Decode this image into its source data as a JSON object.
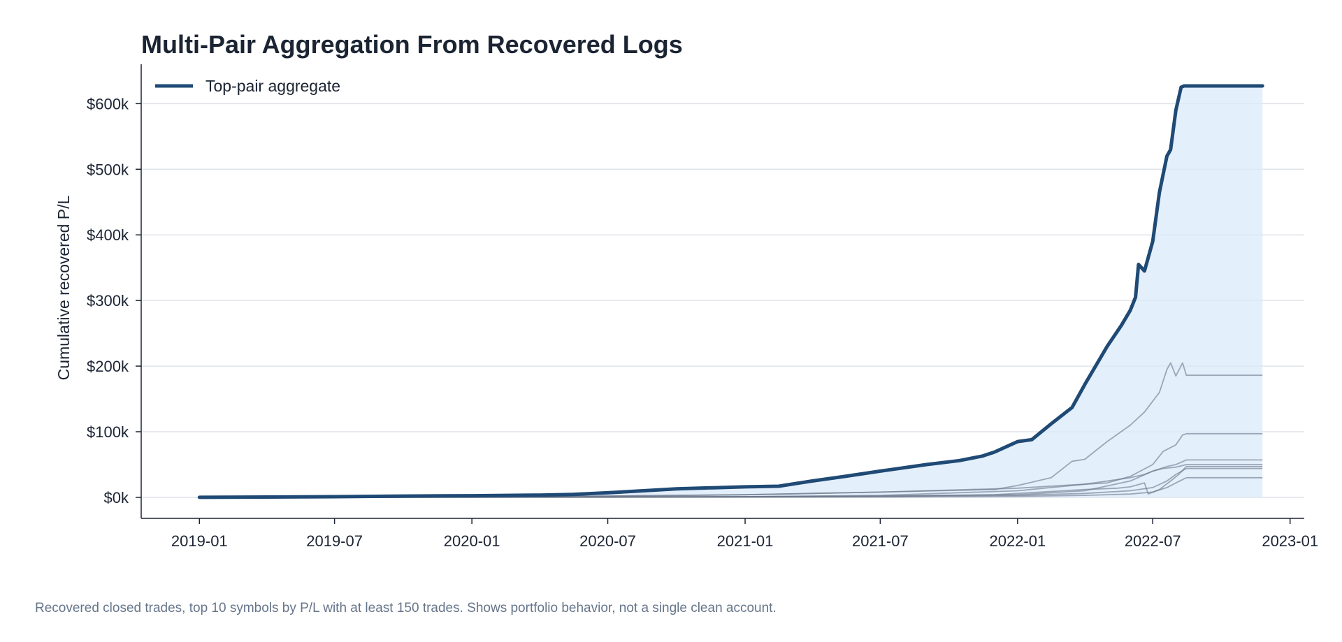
{
  "caption": "Recovered closed trades, top 10 symbols by P/L with at least 150 trades. Shows portfolio behavior, not a single clean account.",
  "chart_data": {
    "type": "line",
    "title": "Multi-Pair Aggregation From Recovered Logs",
    "xlabel": "",
    "ylabel": "Cumulative recovered P/L",
    "x_ticks": [
      "2019-01",
      "2019-07",
      "2020-01",
      "2020-07",
      "2021-01",
      "2021-07",
      "2022-01",
      "2022-07",
      "2023-01"
    ],
    "y_ticks": [
      "$0k",
      "$100k",
      "$200k",
      "$300k",
      "$400k",
      "$500k",
      "$600k"
    ],
    "xlim": [
      "2018-10-15",
      "2023-01-20"
    ],
    "ylim": [
      -32,
      660
    ],
    "grid": "horizontal",
    "legend_position": "top-left",
    "colors": {
      "aggregate": "#1f4a75",
      "fill": "#dbe9fb",
      "components": "#6b7788",
      "grid": "#dfe3e8"
    },
    "series": [
      {
        "name": "Top-pair aggregate",
        "role": "aggregate",
        "dates": [
          "2019-01-01",
          "2019-04-01",
          "2019-07-01",
          "2019-10-01",
          "2020-01-01",
          "2020-04-01",
          "2020-05-15",
          "2020-07-01",
          "2020-09-01",
          "2020-10-01",
          "2021-01-01",
          "2021-02-15",
          "2021-04-01",
          "2021-05-15",
          "2021-07-01",
          "2021-09-01",
          "2021-10-15",
          "2021-11-15",
          "2021-12-01",
          "2022-01-01",
          "2022-01-20",
          "2022-02-15",
          "2022-03-15",
          "2022-04-01",
          "2022-05-01",
          "2022-05-20",
          "2022-06-01",
          "2022-06-08",
          "2022-06-12",
          "2022-06-20",
          "2022-07-01",
          "2022-07-10",
          "2022-07-20",
          "2022-07-25",
          "2022-08-01",
          "2022-08-08",
          "2022-08-12",
          "2022-08-15",
          "2022-11-25"
        ],
        "values": [
          0,
          0.5,
          1,
          2,
          2.5,
          3.5,
          4.5,
          7,
          11,
          13,
          16,
          17,
          25,
          32,
          40,
          50,
          56,
          63,
          69,
          85,
          88,
          112,
          137,
          172,
          230,
          262,
          285,
          305,
          355,
          345,
          390,
          465,
          520,
          530,
          590,
          625,
          627,
          627,
          627
        ]
      },
      {
        "name": "",
        "role": "component",
        "dates": [
          "2019-01-01",
          "2020-01-01",
          "2020-07-01",
          "2021-01-01",
          "2021-07-01",
          "2021-12-01",
          "2022-01-01",
          "2022-02-15",
          "2022-03-15",
          "2022-04-01",
          "2022-05-01",
          "2022-06-01",
          "2022-06-20",
          "2022-07-10",
          "2022-07-20",
          "2022-07-25",
          "2022-08-01",
          "2022-08-10",
          "2022-08-15",
          "2022-11-25"
        ],
        "values": [
          0,
          0.5,
          2,
          4,
          8,
          12,
          18,
          30,
          55,
          58,
          85,
          110,
          130,
          160,
          195,
          205,
          185,
          205,
          186,
          186
        ]
      },
      {
        "name": "",
        "role": "component",
        "dates": [
          "2019-01-01",
          "2020-01-01",
          "2020-07-01",
          "2021-01-01",
          "2021-07-01",
          "2022-01-01",
          "2022-03-01",
          "2022-05-01",
          "2022-06-01",
          "2022-07-01",
          "2022-07-15",
          "2022-08-01",
          "2022-08-10",
          "2022-08-15",
          "2022-11-25"
        ],
        "values": [
          0,
          0.5,
          2,
          4,
          8,
          14,
          18,
          22,
          32,
          50,
          70,
          80,
          95,
          97,
          97
        ]
      },
      {
        "name": "",
        "role": "component",
        "dates": [
          "2019-01-01",
          "2020-01-01",
          "2021-01-01",
          "2021-07-01",
          "2022-01-01",
          "2022-04-01",
          "2022-06-01",
          "2022-07-01",
          "2022-07-20",
          "2022-08-01",
          "2022-08-15",
          "2022-11-25"
        ],
        "values": [
          0,
          0.5,
          1,
          2,
          4,
          10,
          25,
          40,
          47,
          50,
          57,
          57
        ]
      },
      {
        "name": "",
        "role": "component",
        "dates": [
          "2019-01-01",
          "2020-01-01",
          "2021-01-01",
          "2021-07-01",
          "2022-01-01",
          "2022-04-01",
          "2022-06-01",
          "2022-06-20",
          "2022-07-01",
          "2022-07-15",
          "2022-08-01",
          "2022-08-15",
          "2022-11-25"
        ],
        "values": [
          0,
          0.3,
          1,
          3,
          10,
          20,
          30,
          35,
          40,
          44,
          46,
          50,
          50
        ]
      },
      {
        "name": "",
        "role": "component",
        "dates": [
          "2019-01-01",
          "2020-01-01",
          "2021-01-01",
          "2021-07-01",
          "2021-12-01",
          "2022-02-01",
          "2022-04-01",
          "2022-05-15",
          "2022-06-01",
          "2022-06-20",
          "2022-06-25",
          "2022-07-10",
          "2022-07-25",
          "2022-08-05",
          "2022-08-15",
          "2022-11-25"
        ],
        "values": [
          0,
          0.5,
          1,
          2,
          4,
          8,
          12,
          14,
          16,
          22,
          5,
          12,
          25,
          35,
          47,
          47
        ]
      },
      {
        "name": "",
        "role": "component",
        "dates": [
          "2019-01-01",
          "2020-01-01",
          "2021-01-01",
          "2021-07-01",
          "2022-01-01",
          "2022-04-01",
          "2022-06-01",
          "2022-07-01",
          "2022-07-20",
          "2022-08-01",
          "2022-08-15",
          "2022-11-25"
        ],
        "values": [
          0,
          0.3,
          0.8,
          1.5,
          3,
          6,
          10,
          15,
          25,
          35,
          44,
          44
        ]
      },
      {
        "name": "",
        "role": "component",
        "dates": [
          "2019-01-01",
          "2020-07-01",
          "2021-07-01",
          "2022-01-01",
          "2022-04-01",
          "2022-06-01",
          "2022-07-01",
          "2022-07-20",
          "2022-08-01",
          "2022-08-15",
          "2022-11-25"
        ],
        "values": [
          0,
          0.2,
          0.5,
          1.5,
          3,
          5,
          8,
          15,
          22,
          30,
          30
        ]
      }
    ]
  }
}
